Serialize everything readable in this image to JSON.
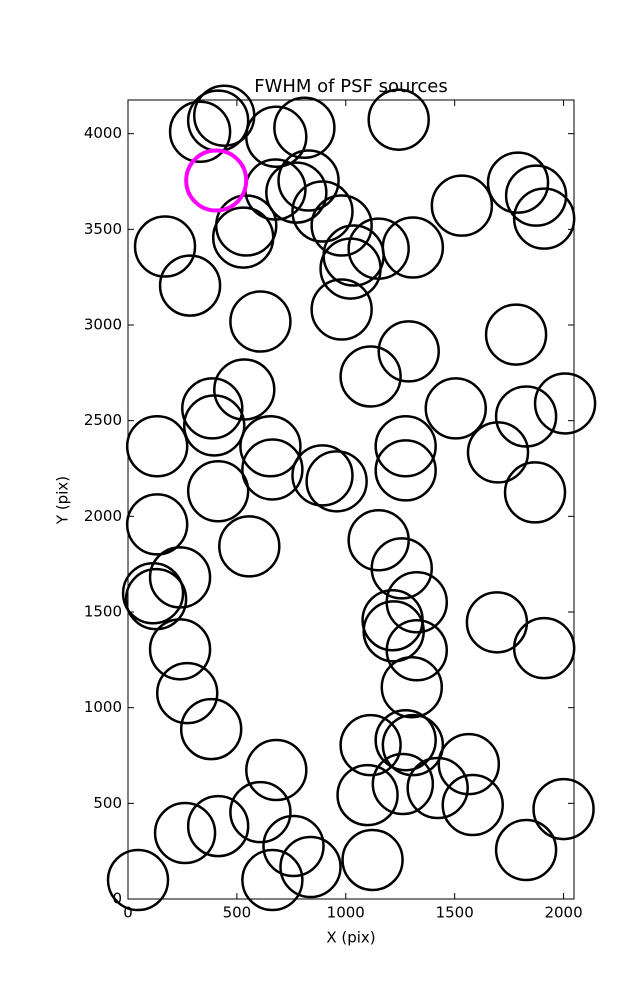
{
  "chart_data": {
    "type": "scatter",
    "title": "FWHM of PSF sources",
    "x_label": "X (pix)",
    "y_label": "Y (pix)",
    "xlim": [
      0,
      2048
    ],
    "ylim": [
      0,
      4176
    ],
    "xticks": [
      0,
      500,
      1000,
      1500,
      2000
    ],
    "yticks": [
      0,
      500,
      1000,
      1500,
      2000,
      2500,
      3000,
      3500,
      4000
    ],
    "series": [
      {
        "color": "#000000",
        "marker": "open-circle",
        "x": [
          46,
          262,
          414,
          608,
          663,
          760,
          838,
          681,
          1123,
          1100,
          1114,
          1262,
          1275,
          1308,
          1422,
          1565,
          1583,
          1828,
          2000,
          382,
          272,
          239,
          129,
          115,
          239,
          134,
          557,
          414,
          663,
          654,
          893,
          958,
          1151,
          1257,
          1326,
          1215,
          1220,
          1326,
          1303,
          1694,
          1911,
          1869,
          1699,
          1828,
          2007,
          1505,
          1275,
          1275,
          1289,
          1114,
          1782,
          981,
          1022,
          1036,
          1151,
          1308,
          981,
          893,
          829,
          773,
          677,
          529,
          543,
          608,
          534,
          387,
          396,
          134,
          285,
          170,
          1533,
          1791,
          1874,
          1911,
          1243,
          810,
          681,
          414,
          331,
          442
        ],
        "values": [
          99,
          345,
          381,
          454,
          99,
          277,
          167,
          674,
          204,
          543,
          804,
          601,
          830,
          804,
          580,
          705,
          491,
          256,
          470,
          888,
          1076,
          1305,
          1567,
          1598,
          1681,
          1958,
          1843,
          2131,
          2245,
          2366,
          2214,
          2183,
          1875,
          1728,
          1551,
          1457,
          1399,
          1300,
          1107,
          1446,
          1311,
          2125,
          2334,
          2522,
          2590,
          2564,
          2366,
          2240,
          2862,
          2731,
          2950,
          3081,
          3295,
          3363,
          3399,
          3405,
          3520,
          3593,
          3755,
          3692,
          3708,
          3457,
          3520,
          3018,
          2663,
          2564,
          2475,
          2366,
          3206,
          3410,
          3624,
          3744,
          3676,
          3556,
          4073,
          4031,
          3984,
          4068,
          4010,
          4094
        ]
      },
      {
        "color": "#ff00ff",
        "marker": "open-circle",
        "x": [
          405
        ],
        "values": [
          3755
        ]
      }
    ]
  }
}
